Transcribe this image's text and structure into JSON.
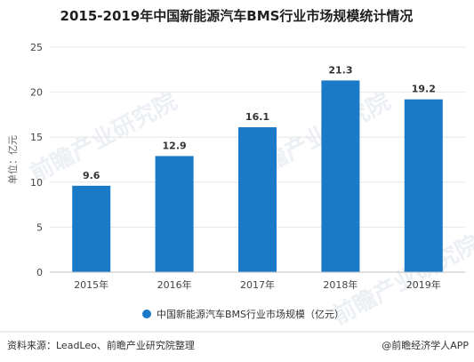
{
  "chart_data": {
    "type": "bar",
    "title": "2015-2019年中国新能源汽车BMS行业市场规模统计情况",
    "ylabel": "单位：亿元",
    "categories": [
      "2015年",
      "2016年",
      "2017年",
      "2018年",
      "2019年"
    ],
    "series": [
      {
        "name": "中国新能源汽车BMS行业市场规模（亿元）",
        "values": [
          9.6,
          12.9,
          16.1,
          21.3,
          19.2
        ]
      }
    ],
    "ylim": [
      0,
      25
    ],
    "yticks": [
      0,
      5,
      10,
      15,
      20,
      25
    ],
    "grid": true,
    "legend": "bottom",
    "bar_color": "#1a7ac8"
  },
  "footer": {
    "source": "资料来源：LeadLeo、前瞻产业研究院整理",
    "brand": "@前瞻经济学人APP"
  },
  "watermark": {
    "text": "前瞻产业研究院"
  }
}
